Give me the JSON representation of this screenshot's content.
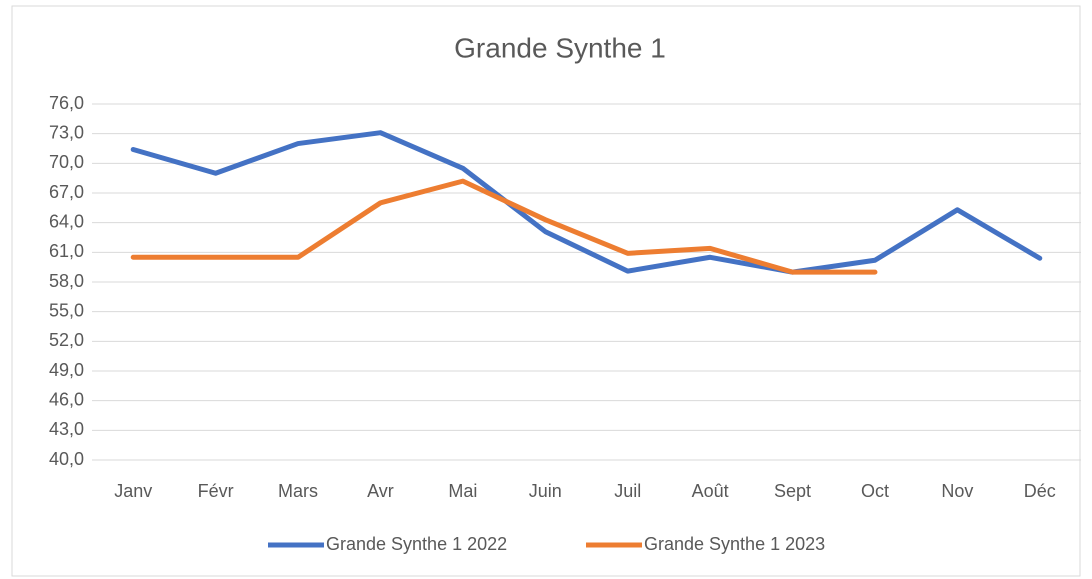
{
  "chart_data": {
    "type": "line",
    "title": "Grande Synthe 1",
    "categories": [
      "Janv",
      "Févr",
      "Mars",
      "Avr",
      "Mai",
      "Juin",
      "Juil",
      "Août",
      "Sept",
      "Oct",
      "Nov",
      "Déc"
    ],
    "series": [
      {
        "name": "Grande Synthe 1 2022",
        "color": "#4472c4",
        "values": [
          71.4,
          69.0,
          72.0,
          73.1,
          69.5,
          63.1,
          59.1,
          60.5,
          59.0,
          60.2,
          65.3,
          60.4
        ]
      },
      {
        "name": "Grande Synthe 1 2023",
        "color": "#ed7d31",
        "values": [
          60.5,
          60.5,
          60.5,
          66.0,
          68.2,
          64.3,
          60.9,
          61.4,
          59.0,
          59.0,
          null,
          null
        ]
      }
    ],
    "ylim": [
      40,
      76
    ],
    "yticks": [
      {
        "value": 40,
        "label": "40,0"
      },
      {
        "value": 43,
        "label": "43,0"
      },
      {
        "value": 46,
        "label": "46,0"
      },
      {
        "value": 49,
        "label": "49,0"
      },
      {
        "value": 52,
        "label": "52,0"
      },
      {
        "value": 55,
        "label": "55,0"
      },
      {
        "value": 58,
        "label": "58,0"
      },
      {
        "value": 61,
        "label": "61,0"
      },
      {
        "value": 64,
        "label": "64,0"
      },
      {
        "value": 67,
        "label": "67,0"
      },
      {
        "value": 70,
        "label": "70,0"
      },
      {
        "value": 73,
        "label": "73,0"
      },
      {
        "value": 76,
        "label": "76,0"
      }
    ],
    "grid": true,
    "legend": "bottom"
  }
}
